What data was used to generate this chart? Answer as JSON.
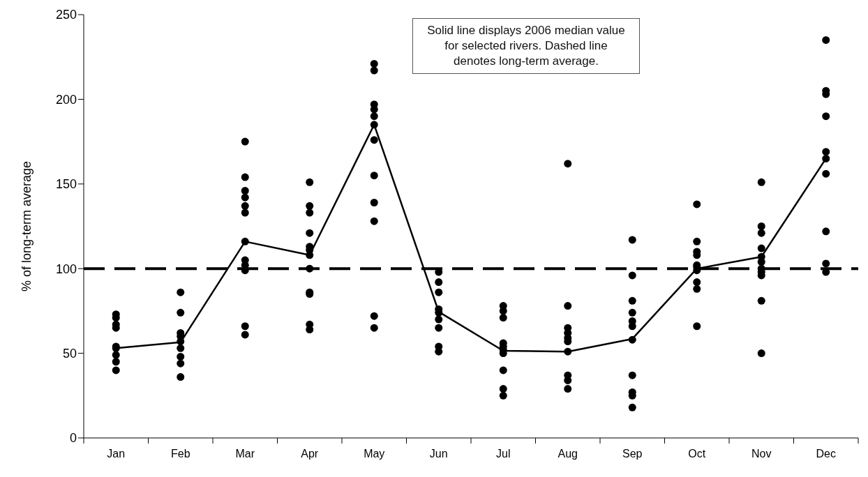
{
  "chart_data": {
    "type": "scatter",
    "ylabel": "% of long-term average",
    "categories": [
      "Jan",
      "Feb",
      "Mar",
      "Apr",
      "May",
      "Jun",
      "Jul",
      "Aug",
      "Sep",
      "Oct",
      "Nov",
      "Dec"
    ],
    "ylim": [
      0,
      250
    ],
    "yticks": [
      0,
      50,
      100,
      150,
      200,
      250
    ],
    "grid": false,
    "legend": false,
    "annotations": [
      "Solid line displays 2006 median value for selected rivers. Dashed line denotes long-term average."
    ],
    "ref_lines": [
      {
        "axis": "y",
        "value": 100,
        "color": "#000000",
        "line_style": "dashed"
      }
    ],
    "series": [
      {
        "color": "#000000",
        "marker": "circle",
        "x": [
          "Jan",
          "Jan",
          "Jan",
          "Jan",
          "Jan",
          "Jan",
          "Jan",
          "Jan",
          "Jan",
          "Feb",
          "Feb",
          "Feb",
          "Feb",
          "Feb",
          "Feb",
          "Feb",
          "Feb",
          "Feb",
          "Mar",
          "Mar",
          "Mar",
          "Mar",
          "Mar",
          "Mar",
          "Mar",
          "Mar",
          "Mar",
          "Mar",
          "Mar",
          "Mar",
          "Apr",
          "Apr",
          "Apr",
          "Apr",
          "Apr",
          "Apr",
          "Apr",
          "Apr",
          "Apr",
          "Apr",
          "Apr",
          "Apr",
          "May",
          "May",
          "May",
          "May",
          "May",
          "May",
          "May",
          "May",
          "May",
          "May",
          "May",
          "May",
          "Jun",
          "Jun",
          "Jun",
          "Jun",
          "Jun",
          "Jun",
          "Jun",
          "Jun",
          "Jun",
          "Jul",
          "Jul",
          "Jul",
          "Jul",
          "Jul",
          "Jul",
          "Jul",
          "Jul",
          "Jul",
          "Jul",
          "Aug",
          "Aug",
          "Aug",
          "Aug",
          "Aug",
          "Aug",
          "Aug",
          "Aug",
          "Aug",
          "Aug",
          "Sep",
          "Sep",
          "Sep",
          "Sep",
          "Sep",
          "Sep",
          "Sep",
          "Sep",
          "Sep",
          "Sep",
          "Sep",
          "Oct",
          "Oct",
          "Oct",
          "Oct",
          "Oct",
          "Oct",
          "Oct",
          "Oct",
          "Oct",
          "Oct",
          "Nov",
          "Nov",
          "Nov",
          "Nov",
          "Nov",
          "Nov",
          "Nov",
          "Nov",
          "Nov",
          "Nov",
          "Nov",
          "Dec",
          "Dec",
          "Dec",
          "Dec",
          "Dec",
          "Dec",
          "Dec",
          "Dec",
          "Dec",
          "Dec"
        ],
        "values": [
          73,
          71,
          67,
          65,
          54,
          53,
          49,
          45,
          40,
          86,
          74,
          62,
          60,
          57,
          53,
          48,
          44,
          36,
          175,
          154,
          146,
          142,
          137,
          133,
          116,
          105,
          102,
          99,
          66,
          61,
          151,
          137,
          133,
          121,
          113,
          111,
          108,
          100,
          86,
          85,
          67,
          64,
          221,
          217,
          197,
          194,
          190,
          185,
          176,
          155,
          139,
          128,
          72,
          65,
          98,
          92,
          86,
          76,
          74,
          70,
          65,
          54,
          51,
          78,
          75,
          71,
          56,
          54,
          52,
          50,
          40,
          29,
          25,
          162,
          78,
          65,
          62,
          59,
          57,
          51,
          37,
          34,
          29,
          117,
          96,
          81,
          74,
          69,
          66,
          58,
          37,
          27,
          25,
          18,
          138,
          116,
          110,
          108,
          102,
          101,
          99,
          92,
          88,
          66,
          151,
          125,
          121,
          112,
          107,
          104,
          100,
          98,
          96,
          81,
          50,
          235,
          205,
          203,
          190,
          169,
          165,
          156,
          122,
          103,
          98
        ]
      },
      {
        "type": "line",
        "color": "#000000",
        "marker": "none",
        "line_style": "solid",
        "values": [
          53,
          56.5,
          116,
          108,
          185,
          74.5,
          51.5,
          51,
          58.5,
          100,
          107,
          165
        ]
      }
    ]
  }
}
